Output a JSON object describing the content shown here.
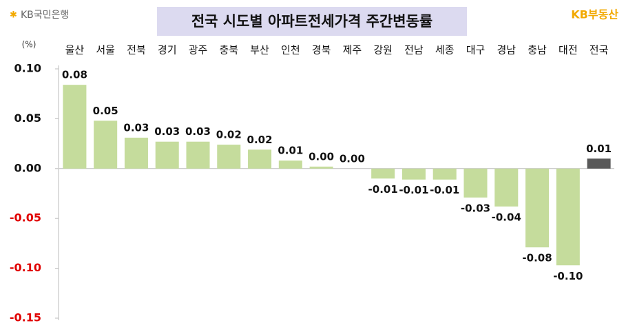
{
  "brand_left": "KB국민은행",
  "brand_right": "KB부동산",
  "chart_data": {
    "type": "bar",
    "title": "전국 시도별 아파트전세가격 주간변동률",
    "y_unit": "(%)",
    "categories": [
      "울산",
      "서울",
      "전북",
      "경기",
      "광주",
      "충북",
      "부산",
      "인천",
      "경북",
      "제주",
      "강원",
      "전남",
      "세종",
      "대구",
      "경남",
      "충남",
      "대전",
      "전국"
    ],
    "values": [
      0.084,
      0.048,
      0.031,
      0.027,
      0.027,
      0.024,
      0.019,
      0.008,
      0.002,
      0.0,
      -0.01,
      -0.011,
      -0.011,
      -0.029,
      -0.038,
      -0.079,
      -0.097,
      0.01
    ],
    "value_labels": [
      "0.08",
      "0.05",
      "0.03",
      "0.03",
      "0.03",
      "0.02",
      "0.02",
      "0.01",
      "0.00",
      "0.00",
      "-0.01",
      "-0.01",
      "-0.01",
      "-0.03",
      "-0.04",
      "-0.08",
      "-0.10",
      "0.01"
    ],
    "colors": [
      "#c5dc9c",
      "#c5dc9c",
      "#c5dc9c",
      "#c5dc9c",
      "#c5dc9c",
      "#c5dc9c",
      "#c5dc9c",
      "#c5dc9c",
      "#c5dc9c",
      "#c5dc9c",
      "#c5dc9c",
      "#c5dc9c",
      "#c5dc9c",
      "#c5dc9c",
      "#c5dc9c",
      "#c5dc9c",
      "#c5dc9c",
      "#595959"
    ],
    "ylim": [
      -0.15,
      0.1
    ],
    "yticks": [
      {
        "value": -0.15,
        "label": "-0.15"
      },
      {
        "value": -0.1,
        "label": "-0.10"
      },
      {
        "value": -0.05,
        "label": "-0.05"
      },
      {
        "value": 0,
        "label": "0.00"
      },
      {
        "value": 0.05,
        "label": "0.05"
      },
      {
        "value": 0.1,
        "label": "0.10"
      }
    ],
    "negative_tick_color": "#e00000"
  }
}
